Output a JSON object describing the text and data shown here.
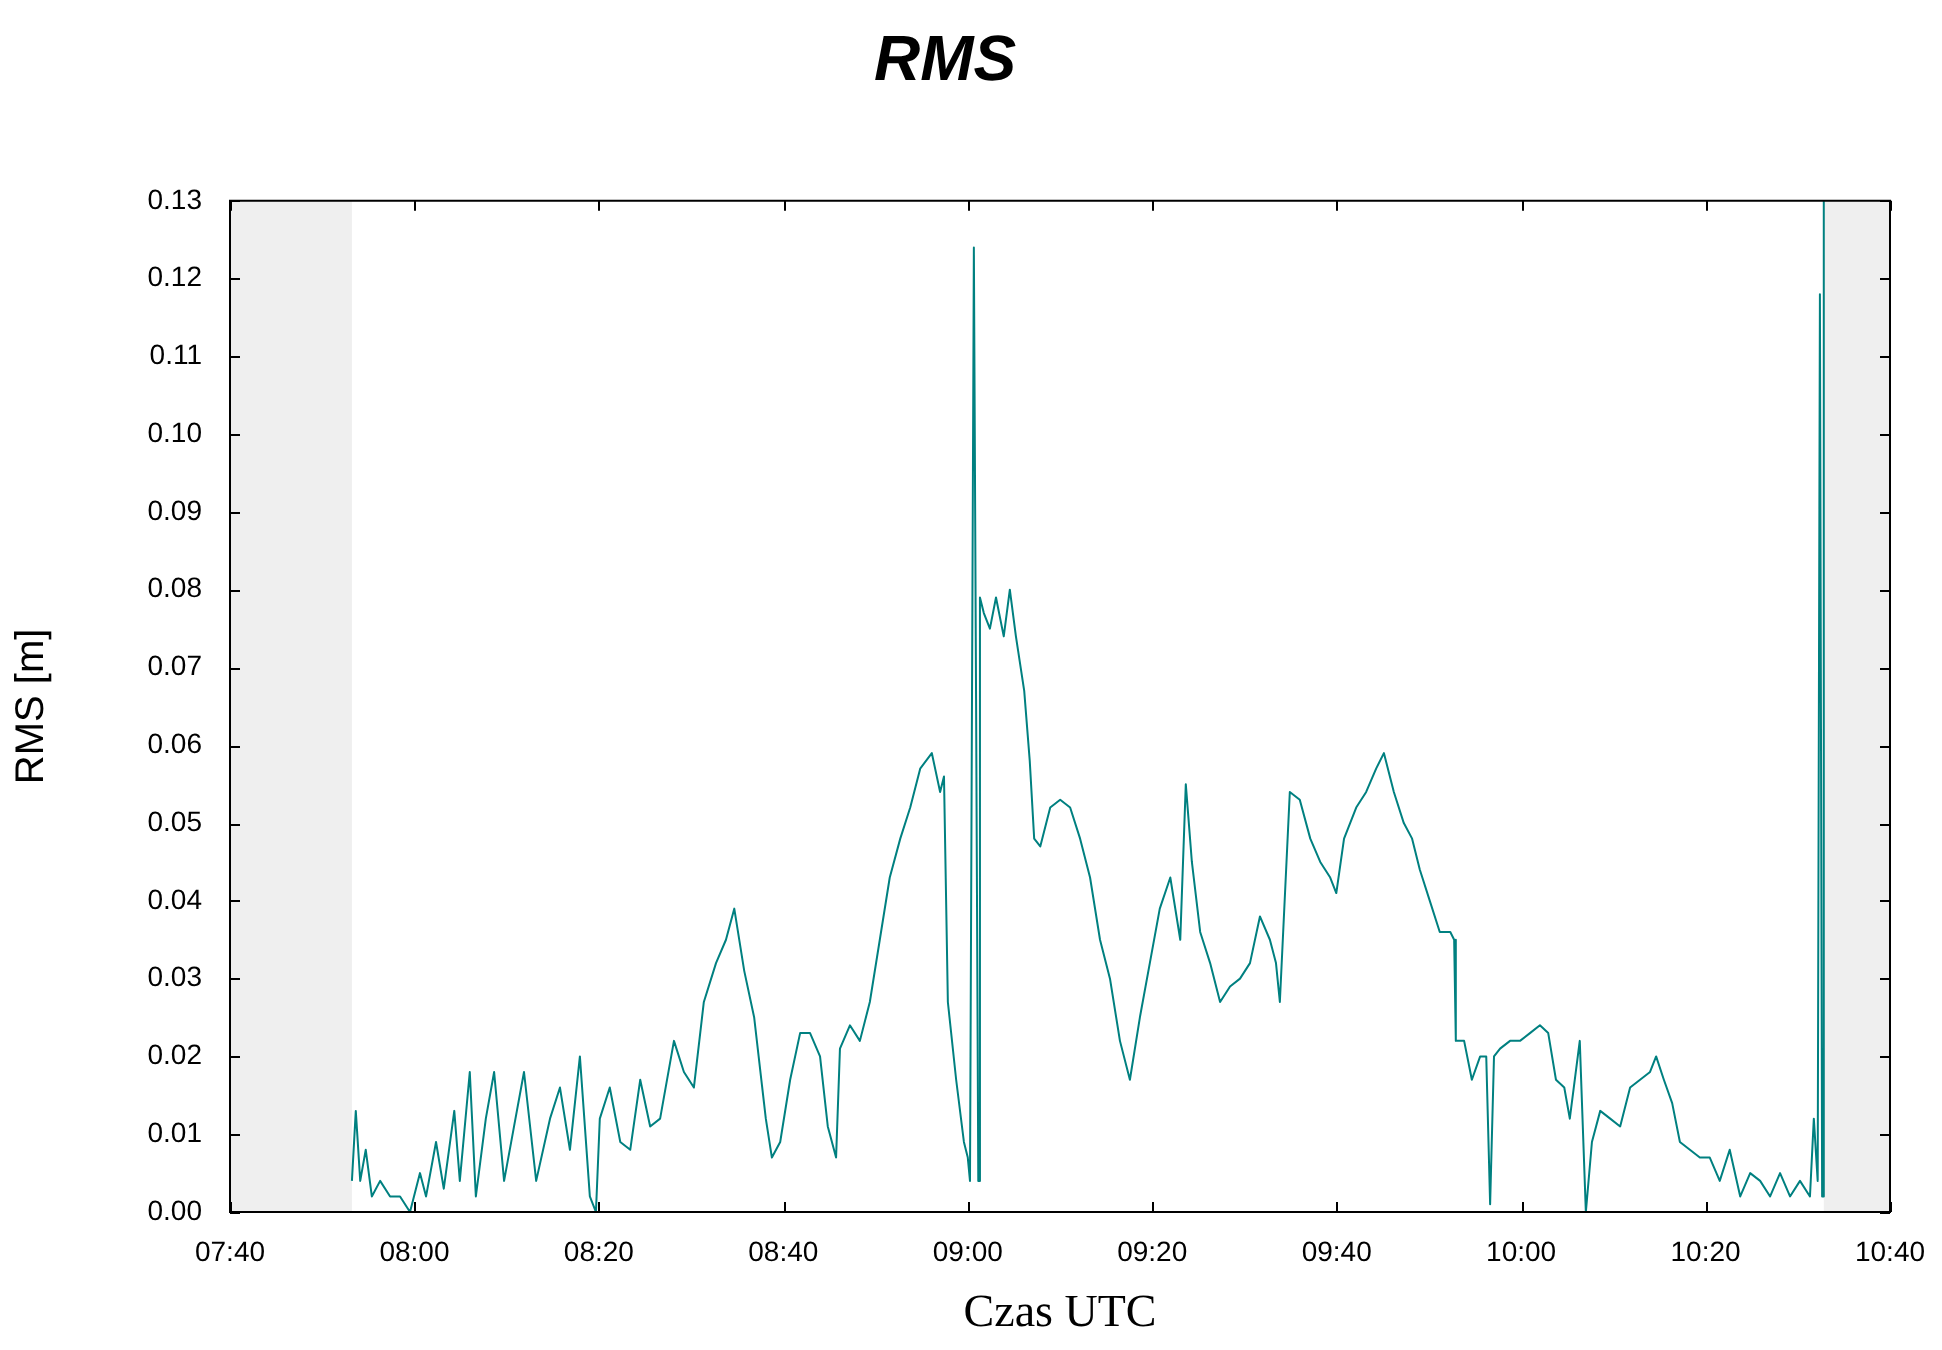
{
  "chart_data": {
    "type": "line",
    "title": "RMS",
    "xlabel": "Czas UTC",
    "ylabel": "RMS [m]",
    "xlim": [
      7.66667,
      10.66667
    ],
    "xticks": [
      {
        "value": 7.66667,
        "label": "07:40"
      },
      {
        "value": 8,
        "label": "08:00"
      },
      {
        "value": 8.33333,
        "label": "08:20"
      },
      {
        "value": 8.66667,
        "label": "08:40"
      },
      {
        "value": 9,
        "label": "09:00"
      },
      {
        "value": 9.33333,
        "label": "09:20"
      },
      {
        "value": 9.66667,
        "label": "09:40"
      },
      {
        "value": 10,
        "label": "10:00"
      },
      {
        "value": 10.33333,
        "label": "10:20"
      },
      {
        "value": 10.66667,
        "label": "10:40"
      }
    ],
    "ylim": [
      0,
      0.13
    ],
    "yticks": [
      {
        "value": 0,
        "label": "0.00"
      },
      {
        "value": 0.01,
        "label": "0.01"
      },
      {
        "value": 0.02,
        "label": "0.02"
      },
      {
        "value": 0.03,
        "label": "0.03"
      },
      {
        "value": 0.04,
        "label": "0.04"
      },
      {
        "value": 0.05,
        "label": "0.05"
      },
      {
        "value": 0.06,
        "label": "0.06"
      },
      {
        "value": 0.07,
        "label": "0.07"
      },
      {
        "value": 0.08,
        "label": "0.08"
      },
      {
        "value": 0.09,
        "label": "0.09"
      },
      {
        "value": 0.1,
        "label": "0.10"
      },
      {
        "value": 0.11,
        "label": "0.11"
      },
      {
        "value": 0.12,
        "label": "0.12"
      },
      {
        "value": 0.13,
        "label": "0.13"
      }
    ],
    "bands": [
      {
        "axis": "x",
        "from": 7.66667,
        "to": 7.887,
        "color": "#efefef"
      },
      {
        "axis": "x",
        "from": 10.547,
        "to": 10.66667,
        "color": "#efefef"
      }
    ],
    "grid": false,
    "legend": false,
    "marker": "none",
    "line_style": "solid",
    "x": [
      7.887,
      7.894,
      7.902,
      7.912,
      7.923,
      7.938,
      7.956,
      7.974,
      7.992,
      8.01,
      8.021,
      8.039,
      8.053,
      8.072,
      8.082,
      8.1,
      8.111,
      8.129,
      8.144,
      8.162,
      8.18,
      8.198,
      8.22,
      8.245,
      8.263,
      8.281,
      8.299,
      8.317,
      8.328,
      8.335,
      8.353,
      8.372,
      8.39,
      8.408,
      8.426,
      8.444,
      8.469,
      8.487,
      8.505,
      8.523,
      8.545,
      8.563,
      8.578,
      8.596,
      8.614,
      8.635,
      8.646,
      8.661,
      8.679,
      8.697,
      8.715,
      8.733,
      8.747,
      8.762,
      8.769,
      8.787,
      8.805,
      8.823,
      8.841,
      8.859,
      8.878,
      8.896,
      8.914,
      8.935,
      8.95,
      8.957,
      8.964,
      8.979,
      8.993,
      9.0,
      9.004,
      9.011,
      9.015,
      9.019,
      9.022,
      9.029,
      9.04,
      9.051,
      9.065,
      9.076,
      9.087,
      9.102,
      9.112,
      9.12,
      9.131,
      9.149,
      9.167,
      9.185,
      9.203,
      9.221,
      9.239,
      9.257,
      9.275,
      9.293,
      9.311,
      9.329,
      9.347,
      9.366,
      9.384,
      9.394,
      9.405,
      9.42,
      9.438,
      9.456,
      9.474,
      9.492,
      9.51,
      9.528,
      9.546,
      9.557,
      9.564,
      9.582,
      9.6,
      9.619,
      9.637,
      9.655,
      9.666,
      9.68,
      9.702,
      9.72,
      9.738,
      9.752,
      9.77,
      9.788,
      9.803,
      9.817,
      9.835,
      9.853,
      9.872,
      9.879,
      9.882,
      9.897,
      9.911,
      9.926,
      9.937,
      9.944,
      9.951,
      9.962,
      9.98,
      9.998,
      10.016,
      10.034,
      10.049,
      10.063,
      10.078,
      10.088,
      10.106,
      10.117,
      10.128,
      10.143,
      10.161,
      10.179,
      10.197,
      10.215,
      10.233,
      10.244,
      10.258,
      10.273,
      10.287,
      10.305,
      10.323,
      10.341,
      10.359,
      10.377,
      10.396,
      10.414,
      10.432,
      10.45,
      10.468,
      10.486,
      10.504,
      10.522,
      10.529,
      10.536,
      10.54,
      10.544,
      10.547
    ],
    "series": [
      {
        "color": "#008080",
        "values": [
          0.004,
          0.013,
          0.004,
          0.008,
          0.002,
          0.004,
          0.002,
          0.002,
          0,
          0.005,
          0.002,
          0.009,
          0.003,
          0.013,
          0.004,
          0.018,
          0.002,
          0.012,
          0.018,
          0.004,
          0.011,
          0.018,
          0.004,
          0.012,
          0.016,
          0.008,
          0.02,
          0.002,
          0,
          0.012,
          0.016,
          0.009,
          0.008,
          0.017,
          0.011,
          0.012,
          0.022,
          0.018,
          0.016,
          0.027,
          0.032,
          0.035,
          0.039,
          0.031,
          0.025,
          0.012,
          0.007,
          0.009,
          0.017,
          0.023,
          0.023,
          0.02,
          0.011,
          0.007,
          0.021,
          0.024,
          0.022,
          0.027,
          0.035,
          0.043,
          0.048,
          0.052,
          0.057,
          0.059,
          0.054,
          0.056,
          0.027,
          0.017,
          0.009,
          0.007,
          0.004,
          0.124,
          0.066,
          0.004,
          0.079,
          0.077,
          0.075,
          0.079,
          0.074,
          0.08,
          0.074,
          0.067,
          0.058,
          0.048,
          0.047,
          0.052,
          0.053,
          0.052,
          0.048,
          0.043,
          0.035,
          0.03,
          0.022,
          0.017,
          0.025,
          0.032,
          0.039,
          0.043,
          0.035,
          0.055,
          0.045,
          0.036,
          0.032,
          0.027,
          0.029,
          0.03,
          0.032,
          0.038,
          0.035,
          0.032,
          0.027,
          0.054,
          0.053,
          0.048,
          0.045,
          0.043,
          0.041,
          0.048,
          0.052,
          0.054,
          0.057,
          0.059,
          0.054,
          0.05,
          0.048,
          0.044,
          0.04,
          0.036,
          0.036,
          0.035,
          0.022,
          0.022,
          0.017,
          0.02,
          0.02,
          0.001,
          0.02,
          0.021,
          0.022,
          0.022,
          0.023,
          0.024,
          0.023,
          0.017,
          0.016,
          0.012,
          0.022,
          0,
          0.009,
          0.013,
          0.012,
          0.011,
          0.016,
          0.017,
          0.018,
          0.02,
          0.017,
          0.014,
          0.009,
          0.008,
          0.007,
          0.007,
          0.004,
          0.008,
          0.002,
          0.005,
          0.004,
          0.002,
          0.005,
          0.002,
          0.004,
          0.002,
          0.012,
          0.004,
          0.118,
          0.002,
          0.13
        ]
      }
    ]
  }
}
